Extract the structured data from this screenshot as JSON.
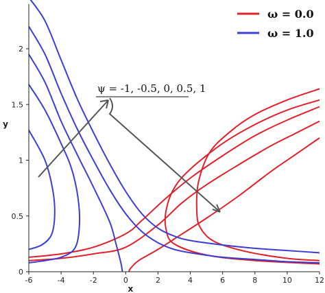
{
  "chart_data": {
    "type": "line",
    "xlabel": "x",
    "ylabel": "y",
    "xlim": [
      -6,
      12
    ],
    "ylim": [
      0,
      2.4
    ],
    "xticks": [
      "-6",
      "-4",
      "-2",
      "0",
      "2",
      "4",
      "6",
      "8",
      "10",
      "12"
    ],
    "yticks": [
      "0",
      "0.5",
      "1",
      "1.5",
      "2"
    ],
    "grid": false,
    "legend_position": "top-right",
    "annotation": "ψ = -1, -0.5, 0, 0.5, 1",
    "series": [
      {
        "name": "ω = 0.0",
        "color": "#e0202a",
        "curves": [
          [
            [
              0.2,
              0
            ],
            [
              0.3,
              0.03
            ],
            [
              0.8,
              0.1
            ],
            [
              2,
              0.2
            ],
            [
              3.5,
              0.34
            ],
            [
              5,
              0.48
            ],
            [
              7,
              0.68
            ],
            [
              9,
              0.9
            ],
            [
              10.5,
              1.05
            ],
            [
              12,
              1.2
            ]
          ],
          [
            [
              -6,
              0.1
            ],
            [
              -4,
              0.12
            ],
            [
              -2,
              0.16
            ],
            [
              0,
              0.22
            ],
            [
              2,
              0.42
            ],
            [
              3.5,
              0.62
            ],
            [
              5,
              0.78
            ],
            [
              7,
              0.96
            ],
            [
              9,
              1.13
            ],
            [
              10.5,
              1.24
            ],
            [
              12,
              1.35
            ]
          ],
          [
            [
              -6,
              0.13
            ],
            [
              -4,
              0.16
            ],
            [
              -2,
              0.22
            ],
            [
              0,
              0.34
            ],
            [
              1,
              0.46
            ],
            [
              2.5,
              0.66
            ],
            [
              4,
              0.84
            ],
            [
              6,
              1.04
            ],
            [
              8,
              1.22
            ],
            [
              10,
              1.36
            ],
            [
              12,
              1.48
            ]
          ],
          [
            [
              12,
              1.54
            ],
            [
              10,
              1.45
            ],
            [
              8,
              1.32
            ],
            [
              6,
              1.15
            ],
            [
              4,
              0.92
            ],
            [
              3,
              0.75
            ],
            [
              2.5,
              0.55
            ],
            [
              2.5,
              0.38
            ],
            [
              3,
              0.25
            ],
            [
              5,
              0.15
            ],
            [
              8,
              0.1
            ],
            [
              12,
              0.07
            ]
          ],
          [
            [
              12,
              1.64
            ],
            [
              10,
              1.54
            ],
            [
              8,
              1.41
            ],
            [
              6.5,
              1.26
            ],
            [
              5.2,
              1.07
            ],
            [
              4.5,
              0.8
            ],
            [
              4.4,
              0.55
            ],
            [
              4.6,
              0.4
            ],
            [
              5.5,
              0.27
            ],
            [
              7.5,
              0.18
            ],
            [
              10,
              0.12
            ],
            [
              12,
              0.1
            ]
          ]
        ]
      },
      {
        "name": "ω = 1.0",
        "color": "#3c3cd2",
        "curves": [
          [
            [
              -6,
              2.46
            ],
            [
              -5,
              2.25
            ],
            [
              -4,
              1.9
            ],
            [
              -3,
              1.55
            ],
            [
              -2,
              1.25
            ],
            [
              -1,
              0.97
            ],
            [
              0,
              0.72
            ],
            [
              1,
              0.52
            ],
            [
              2,
              0.39
            ],
            [
              3,
              0.32
            ],
            [
              4,
              0.28
            ],
            [
              6,
              0.24
            ],
            [
              8,
              0.21
            ],
            [
              10,
              0.19
            ],
            [
              12,
              0.17
            ]
          ],
          [
            [
              -6,
              2.2
            ],
            [
              -5,
              1.95
            ],
            [
              -4,
              1.6
            ],
            [
              -3,
              1.28
            ],
            [
              -2,
              1.0
            ],
            [
              -1,
              0.74
            ],
            [
              0,
              0.52
            ],
            [
              1,
              0.36
            ],
            [
              2,
              0.26
            ],
            [
              3,
              0.2
            ],
            [
              4,
              0.17
            ],
            [
              6,
              0.13
            ],
            [
              8,
              0.11
            ],
            [
              10,
              0.09
            ],
            [
              12,
              0.08
            ]
          ],
          [
            [
              -6,
              1.95
            ],
            [
              -5,
              1.7
            ],
            [
              -4,
              1.35
            ],
            [
              -3,
              1.05
            ],
            [
              -2,
              0.76
            ],
            [
              -1,
              0.45
            ],
            [
              -0.6,
              0.25
            ],
            [
              -0.3,
              0.08
            ],
            [
              -0.2,
              0
            ]
          ],
          [
            [
              -6,
              1.68
            ],
            [
              -5,
              1.45
            ],
            [
              -4,
              1.15
            ],
            [
              -3.3,
              0.9
            ],
            [
              -2.9,
              0.6
            ],
            [
              -2.9,
              0.35
            ],
            [
              -3.2,
              0.2
            ],
            [
              -4,
              0.13
            ],
            [
              -5,
              0.1
            ],
            [
              -6,
              0.08
            ]
          ],
          [
            [
              -6,
              1.27
            ],
            [
              -5,
              1.0
            ],
            [
              -4.5,
              0.72
            ],
            [
              -4.4,
              0.5
            ],
            [
              -4.6,
              0.33
            ],
            [
              -5.2,
              0.24
            ],
            [
              -6,
              0.2
            ]
          ]
        ]
      }
    ]
  }
}
